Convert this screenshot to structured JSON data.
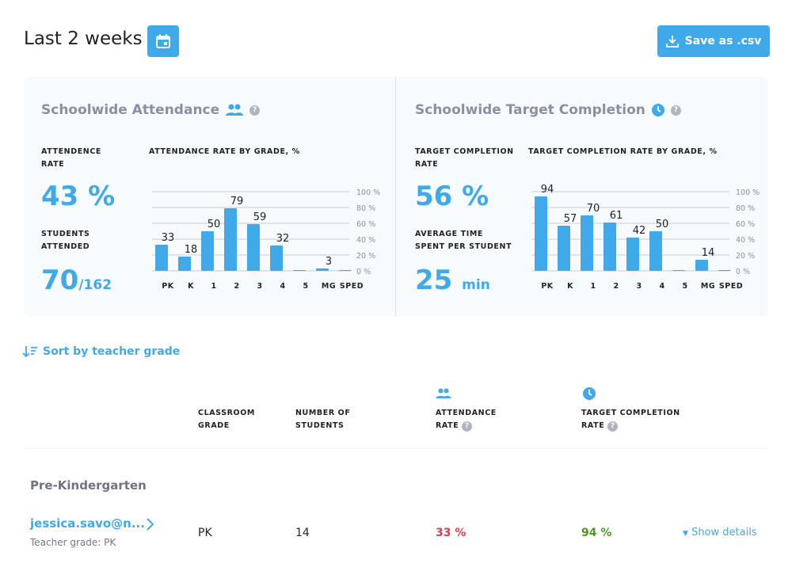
{
  "header": {
    "title": "Last 2 weeks",
    "save_label": "Save as .csv",
    "accent": "#3fa9e9"
  },
  "attendance": {
    "title": "Schoolwide Attendance",
    "rate_label_1": "ATTENDENCE",
    "rate_label_2": "RATE",
    "rate_value": "43 %",
    "students_label_1": "STUDENTS",
    "students_label_2": "ATTENDED",
    "students_value": "70",
    "students_total": "/162"
  },
  "target": {
    "title": "Schoolwide Target Completion",
    "rate_label_1": "TARGET COMPLETION",
    "rate_label_2": "RATE",
    "rate_value": "56 %",
    "time_label_1": "AVERAGE TIME",
    "time_label_2": "SPENT PER STUDENT",
    "time_value": "25",
    "time_unit": "min"
  },
  "chart_data": [
    {
      "type": "bar",
      "title": "ATTENDANCE RATE BY GRADE, %",
      "categories": [
        "PK",
        "K",
        "1",
        "2",
        "3",
        "4",
        "5",
        "MG",
        "SPED"
      ],
      "values": [
        33,
        18,
        50,
        79,
        59,
        32,
        0,
        3,
        0
      ],
      "ylim": [
        0,
        100
      ],
      "yticks": [
        "100 %",
        "80 %",
        "60 %",
        "40 %",
        "20 %",
        "0 %"
      ],
      "grid": true
    },
    {
      "type": "bar",
      "title": "TARGET COMPLETION RATE BY GRADE, %",
      "categories": [
        "PK",
        "K",
        "1",
        "2",
        "3",
        "4",
        "5",
        "MG",
        "SPED"
      ],
      "values": [
        94,
        57,
        70,
        61,
        42,
        50,
        0,
        14,
        0
      ],
      "ylim": [
        0,
        100
      ],
      "yticks": [
        "100 %",
        "80 %",
        "60 %",
        "40 %",
        "20 %",
        "0 %"
      ],
      "grid": true
    }
  ],
  "sort": {
    "label": "Sort by teacher grade"
  },
  "table": {
    "headers": {
      "grade_1": "CLASSROOM",
      "grade_2": "GRADE",
      "students_1": "NUMBER OF",
      "students_2": "STUDENTS",
      "att_1": "ATTENDANCE",
      "att_2": "RATE",
      "tc_1": "TARGET COMPLETION",
      "tc_2": "RATE"
    },
    "group": "Pre-Kindergarten",
    "rows": [
      {
        "teacher": "jessica.savo@n...",
        "teacher_grade": "Teacher grade: PK",
        "grade": "PK",
        "students": "14",
        "attendance": "33 %",
        "target": "94 %",
        "details": "Show details"
      }
    ]
  },
  "colors": {
    "bad": "#e8384f",
    "good": "#4a9a1c",
    "bar": "#3fa9e9"
  }
}
